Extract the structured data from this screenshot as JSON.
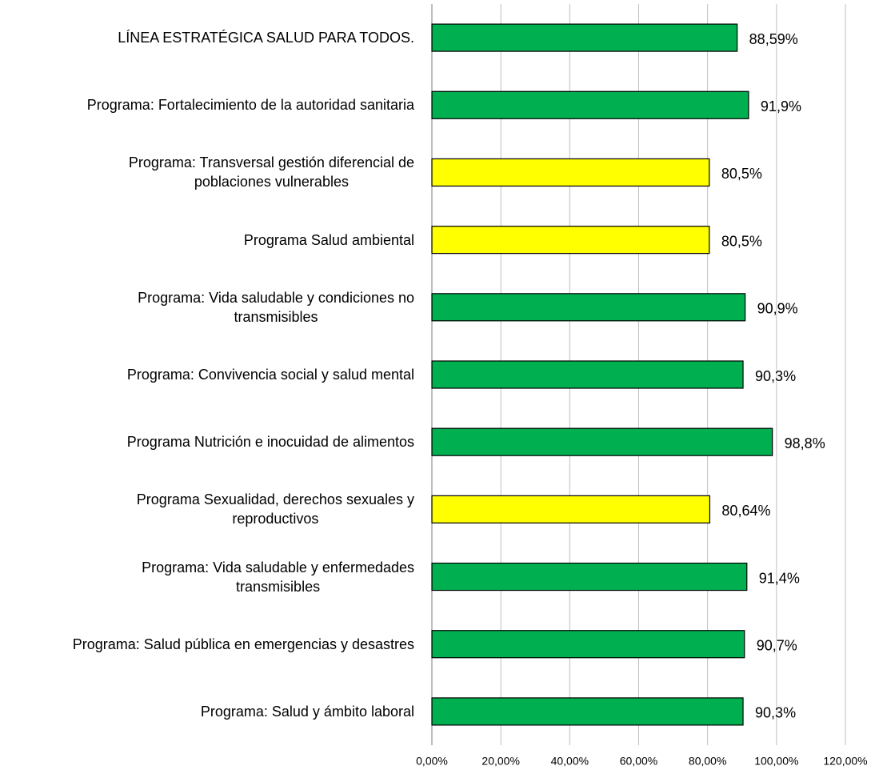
{
  "chart_data": {
    "type": "barh",
    "categories": [
      "LÍNEA ESTRATÉGICA SALUD PARA TODOS.",
      "Programa: Fortalecimiento de la autoridad sanitaria",
      "Programa: Transversal gestión diferencial de\npoblaciones vulnerables",
      "Programa Salud ambiental",
      "Programa: Vida saludable y condiciones no\ntransmisibles",
      "Programa: Convivencia social y salud mental",
      "Programa Nutrición e inocuidad de alimentos",
      "Programa Sexualidad, derechos sexuales y\nreproductivos",
      "Programa: Vida saludable y enfermedades\ntransmisibles",
      "Programa: Salud pública en emergencias y desastres",
      "Programa: Salud y ámbito laboral"
    ],
    "values": [
      88.59,
      91.9,
      80.5,
      80.5,
      90.9,
      90.3,
      98.8,
      80.64,
      91.4,
      90.7,
      90.3
    ],
    "value_labels": [
      "88,59%",
      "91,9%",
      "80,5%",
      "80,5%",
      "90,9%",
      "90,3%",
      "98,8%",
      "80,64%",
      "91,4%",
      "90,7%",
      "90,3%"
    ],
    "colors": [
      "#00b050",
      "#00b050",
      "#ffff00",
      "#ffff00",
      "#00b050",
      "#00b050",
      "#00b050",
      "#ffff00",
      "#00b050",
      "#00b050",
      "#00b050"
    ],
    "xlim": [
      0,
      120
    ],
    "xticks": [
      {
        "value": 0,
        "label": "0,00%"
      },
      {
        "value": 20,
        "label": "20,00%"
      },
      {
        "value": 40,
        "label": "40,00%"
      },
      {
        "value": 60,
        "label": "60,00%"
      },
      {
        "value": 80,
        "label": "80,00%"
      },
      {
        "value": 100,
        "label": "100,00%"
      },
      {
        "value": 120,
        "label": "120,00%"
      }
    ],
    "grid": true
  }
}
